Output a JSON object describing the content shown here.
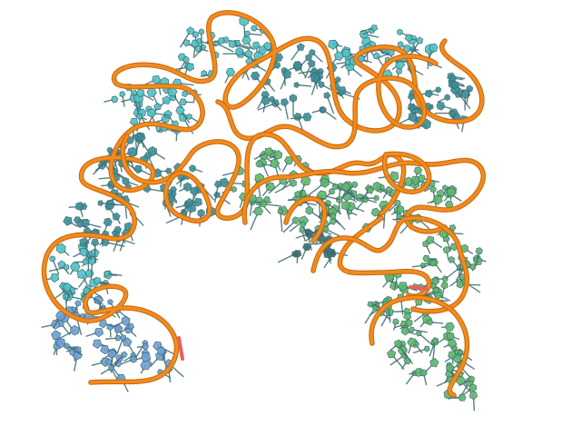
{
  "image": {
    "subject": "rna-tertiary-structure-cartoon",
    "background_color": "#ffffff",
    "colors": {
      "backbone": "#f08c1e",
      "backbone_edge": "#c9650d",
      "backbone_tip": "#e8605a",
      "base_cyan": "#4fc3c8",
      "base_teal": "#3a8f9a",
      "base_blue": "#6f9fd8",
      "base_green": "#5fb86a",
      "base_dark": "#3d6b6e"
    }
  }
}
